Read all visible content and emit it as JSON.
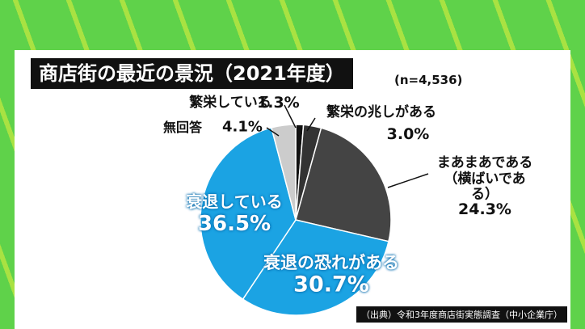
{
  "chart_data": {
    "type": "pie",
    "title": "商店街の最近の景況（2021年度）",
    "subtitle": "(n=4,536)",
    "source": "（出典）令和3年度商店街実態調査（中小企業庁）",
    "categories": [
      "繁栄している",
      "繁栄の兆しがある",
      "まあまあである\n（横ばいである）",
      "衰退の恐れがある",
      "衰退している",
      "無回答"
    ],
    "values": [
      1.3,
      3.0,
      24.3,
      30.7,
      36.5,
      4.1
    ],
    "value_labels": [
      "1.3%",
      "3.0%",
      "24.3%",
      "30.7%",
      "36.5%",
      "4.1%"
    ],
    "colors": [
      "#111111",
      "#333333",
      "#444444",
      "#1ba3e3",
      "#1ba3e3",
      "#cccccc"
    ]
  }
}
